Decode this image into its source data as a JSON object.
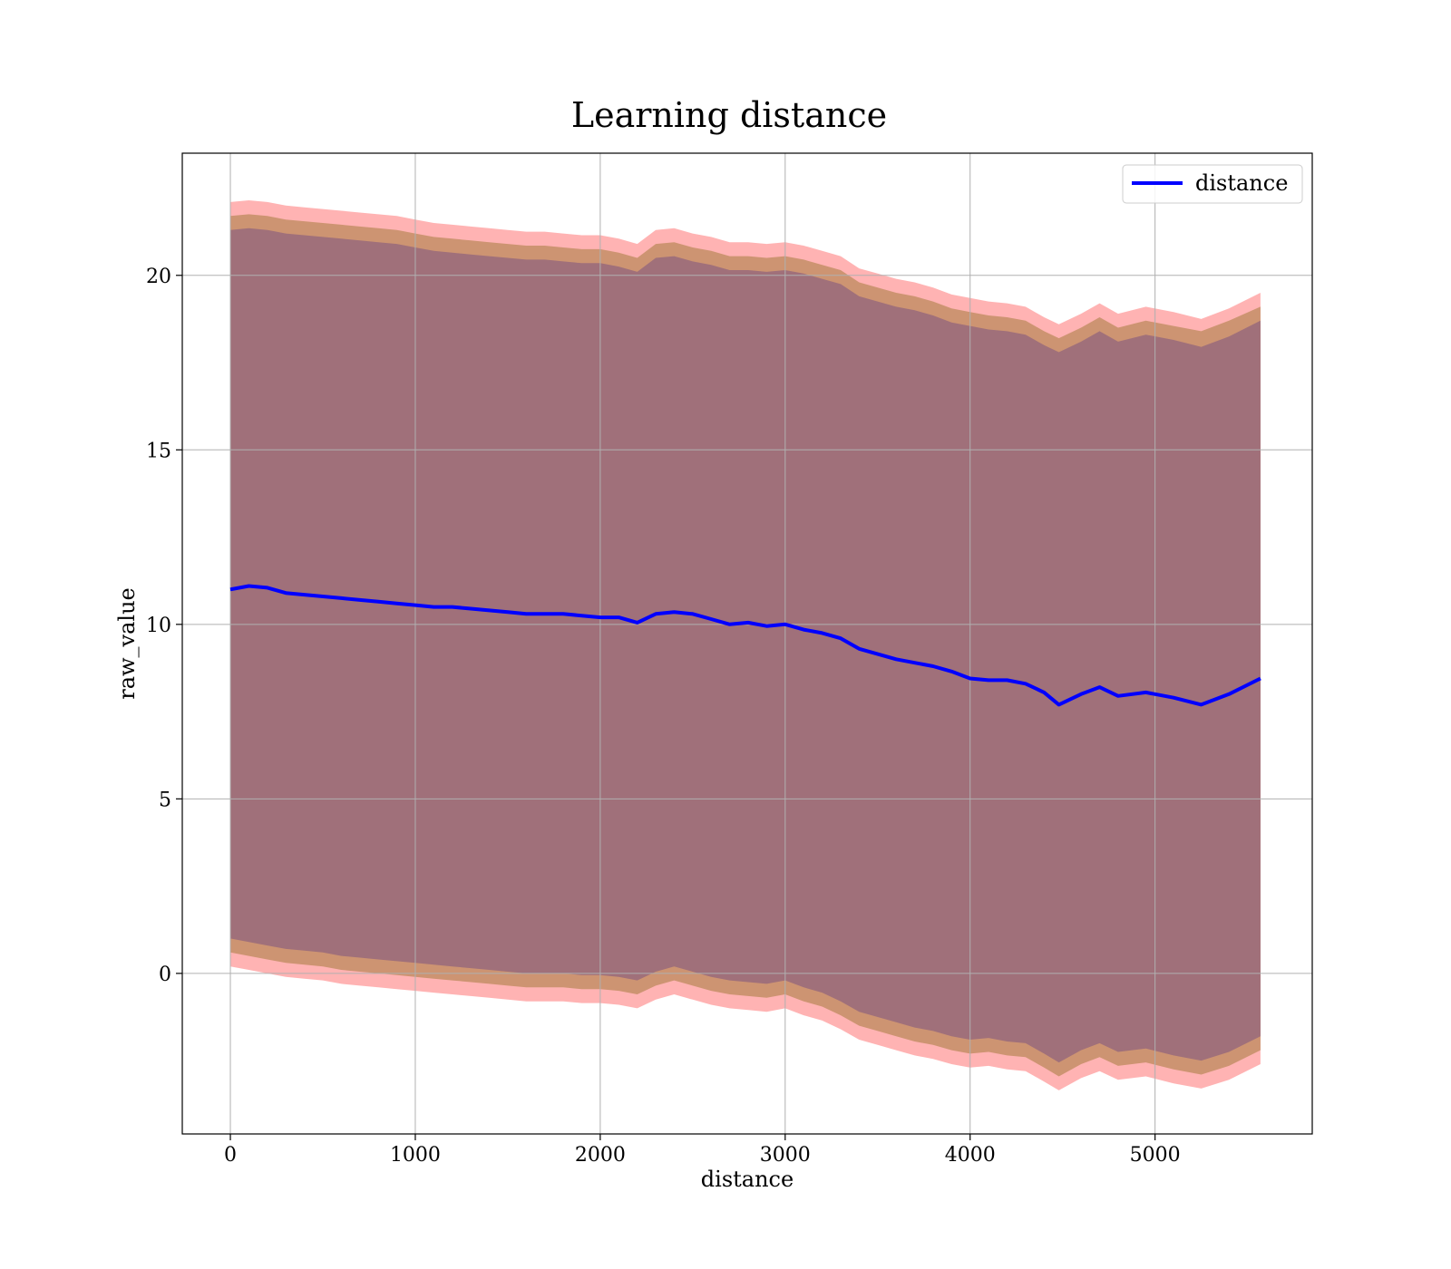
{
  "chart_data": {
    "type": "line",
    "title": "Learning distance",
    "xlabel": "distance",
    "ylabel": "raw_value",
    "xlim": [
      -260,
      5850
    ],
    "ylim": [
      -4.6,
      23.5
    ],
    "xticks": [
      0,
      1000,
      2000,
      3000,
      4000,
      5000
    ],
    "xtick_labels": [
      "0",
      "1000",
      "2000",
      "3000",
      "4000",
      "5000"
    ],
    "yticks": [
      0,
      5,
      10,
      15,
      20
    ],
    "ytick_labels": [
      "0",
      "5",
      "10",
      "15",
      "20"
    ],
    "grid": true,
    "legend_position": "top-right",
    "colors": {
      "line": "#0000ff",
      "outer_band": "#ff9999",
      "middle_band": "#c8906a",
      "inner_band": "#a0707a",
      "grid": "#b0b0b0"
    },
    "series": [
      {
        "name": "distance",
        "x": [
          0,
          100,
          200,
          300,
          400,
          500,
          600,
          700,
          800,
          900,
          1000,
          1100,
          1200,
          1300,
          1400,
          1500,
          1600,
          1700,
          1800,
          1900,
          2000,
          2100,
          2200,
          2300,
          2400,
          2500,
          2600,
          2700,
          2800,
          2900,
          3000,
          3100,
          3200,
          3300,
          3400,
          3500,
          3600,
          3700,
          3800,
          3900,
          4000,
          4100,
          4200,
          4300,
          4400,
          4480,
          4600,
          4700,
          4800,
          4950,
          5100,
          5250,
          5400,
          5570
        ],
        "y": [
          11.0,
          11.1,
          11.05,
          10.9,
          10.85,
          10.8,
          10.75,
          10.7,
          10.65,
          10.6,
          10.55,
          10.5,
          10.5,
          10.45,
          10.4,
          10.35,
          10.3,
          10.3,
          10.3,
          10.25,
          10.2,
          10.2,
          10.05,
          10.3,
          10.35,
          10.3,
          10.15,
          10.0,
          10.05,
          9.95,
          10.0,
          9.85,
          9.75,
          9.6,
          9.3,
          9.15,
          9.0,
          8.9,
          8.8,
          8.65,
          8.45,
          8.4,
          8.4,
          8.3,
          8.05,
          7.7,
          8.0,
          8.2,
          7.95,
          8.05,
          7.9,
          7.7,
          8.0,
          8.45
        ]
      }
    ],
    "bands": {
      "outer": {
        "upper": [
          22.1,
          22.15,
          22.1,
          22.0,
          21.95,
          21.9,
          21.85,
          21.8,
          21.75,
          21.7,
          21.6,
          21.5,
          21.45,
          21.4,
          21.35,
          21.3,
          21.25,
          21.25,
          21.2,
          21.15,
          21.15,
          21.05,
          20.9,
          21.3,
          21.35,
          21.2,
          21.1,
          20.95,
          20.95,
          20.9,
          20.95,
          20.85,
          20.7,
          20.55,
          20.2,
          20.05,
          19.9,
          19.8,
          19.65,
          19.45,
          19.35,
          19.25,
          19.2,
          19.1,
          18.8,
          18.6,
          18.9,
          19.2,
          18.9,
          19.1,
          18.95,
          18.75,
          19.05,
          19.5
        ],
        "lower": [
          0.2,
          0.1,
          0.0,
          -0.1,
          -0.15,
          -0.2,
          -0.3,
          -0.35,
          -0.4,
          -0.45,
          -0.5,
          -0.55,
          -0.6,
          -0.65,
          -0.7,
          -0.75,
          -0.8,
          -0.8,
          -0.8,
          -0.85,
          -0.85,
          -0.9,
          -1.0,
          -0.75,
          -0.6,
          -0.75,
          -0.9,
          -1.0,
          -1.05,
          -1.1,
          -1.0,
          -1.2,
          -1.35,
          -1.6,
          -1.9,
          -2.05,
          -2.2,
          -2.35,
          -2.45,
          -2.6,
          -2.7,
          -2.65,
          -2.75,
          -2.8,
          -3.1,
          -3.35,
          -3.0,
          -2.8,
          -3.05,
          -2.95,
          -3.15,
          -3.3,
          -3.05,
          -2.6
        ]
      },
      "middle": {
        "upper": [
          21.7,
          21.75,
          21.7,
          21.6,
          21.55,
          21.5,
          21.45,
          21.4,
          21.35,
          21.3,
          21.2,
          21.1,
          21.05,
          21.0,
          20.95,
          20.9,
          20.85,
          20.85,
          20.8,
          20.75,
          20.75,
          20.65,
          20.5,
          20.9,
          20.95,
          20.8,
          20.7,
          20.55,
          20.55,
          20.5,
          20.55,
          20.45,
          20.3,
          20.15,
          19.8,
          19.65,
          19.5,
          19.4,
          19.25,
          19.05,
          18.95,
          18.85,
          18.8,
          18.7,
          18.4,
          18.2,
          18.5,
          18.8,
          18.5,
          18.7,
          18.55,
          18.4,
          18.7,
          19.1
        ],
        "lower": [
          0.6,
          0.5,
          0.4,
          0.3,
          0.25,
          0.2,
          0.1,
          0.05,
          0.0,
          -0.05,
          -0.1,
          -0.15,
          -0.2,
          -0.25,
          -0.3,
          -0.35,
          -0.4,
          -0.4,
          -0.4,
          -0.45,
          -0.45,
          -0.5,
          -0.6,
          -0.35,
          -0.2,
          -0.35,
          -0.5,
          -0.6,
          -0.65,
          -0.7,
          -0.6,
          -0.8,
          -0.95,
          -1.2,
          -1.5,
          -1.65,
          -1.8,
          -1.95,
          -2.05,
          -2.2,
          -2.3,
          -2.25,
          -2.35,
          -2.4,
          -2.7,
          -2.95,
          -2.6,
          -2.4,
          -2.65,
          -2.55,
          -2.75,
          -2.9,
          -2.65,
          -2.2
        ]
      },
      "inner": {
        "upper": [
          21.3,
          21.35,
          21.3,
          21.2,
          21.15,
          21.1,
          21.05,
          21.0,
          20.95,
          20.9,
          20.8,
          20.7,
          20.65,
          20.6,
          20.55,
          20.5,
          20.45,
          20.45,
          20.4,
          20.35,
          20.35,
          20.25,
          20.1,
          20.5,
          20.55,
          20.4,
          20.3,
          20.15,
          20.15,
          20.1,
          20.15,
          20.05,
          19.9,
          19.75,
          19.4,
          19.25,
          19.1,
          19.0,
          18.85,
          18.65,
          18.55,
          18.45,
          18.4,
          18.3,
          18.0,
          17.8,
          18.1,
          18.4,
          18.1,
          18.3,
          18.15,
          17.95,
          18.25,
          18.7
        ],
        "lower": [
          1.0,
          0.9,
          0.8,
          0.7,
          0.65,
          0.6,
          0.5,
          0.45,
          0.4,
          0.35,
          0.3,
          0.25,
          0.2,
          0.15,
          0.1,
          0.05,
          0.0,
          0.0,
          0.0,
          -0.05,
          -0.05,
          -0.1,
          -0.2,
          0.05,
          0.2,
          0.05,
          -0.1,
          -0.2,
          -0.25,
          -0.3,
          -0.2,
          -0.4,
          -0.55,
          -0.8,
          -1.1,
          -1.25,
          -1.4,
          -1.55,
          -1.65,
          -1.8,
          -1.9,
          -1.85,
          -1.95,
          -2.0,
          -2.3,
          -2.55,
          -2.2,
          -2.0,
          -2.25,
          -2.15,
          -2.35,
          -2.5,
          -2.25,
          -1.8
        ]
      }
    }
  }
}
